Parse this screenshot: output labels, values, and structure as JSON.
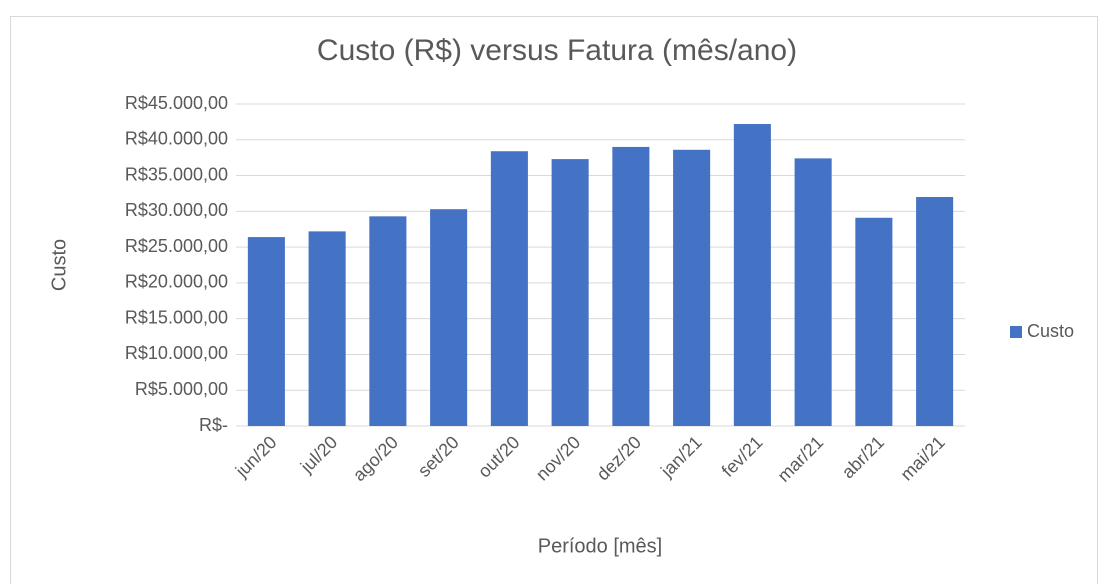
{
  "chart_data": {
    "type": "bar",
    "title": "Custo (R$) versus Fatura (mês/ano)",
    "x_label": "Período [mês]",
    "y_label": "Custo",
    "categories": [
      "jun/20",
      "jul/20",
      "ago/20",
      "set/20",
      "out/20",
      "nov/20",
      "dez/20",
      "jan/21",
      "fev/21",
      "mar/21",
      "abr/21",
      "mai/21"
    ],
    "series": [
      {
        "name": "Custo",
        "color": "#4472c4",
        "values": [
          26400,
          27200,
          29300,
          30300,
          38400,
          37300,
          39000,
          38600,
          42200,
          37400,
          29100,
          32000
        ]
      }
    ],
    "ylim": [
      0,
      45000
    ],
    "yticks": [
      {
        "value": 0,
        "label": "R$-"
      },
      {
        "value": 5000,
        "label": "R$5.000,00"
      },
      {
        "value": 10000,
        "label": "R$10.000,00"
      },
      {
        "value": 15000,
        "label": "R$15.000,00"
      },
      {
        "value": 20000,
        "label": "R$20.000,00"
      },
      {
        "value": 25000,
        "label": "R$25.000,00"
      },
      {
        "value": 30000,
        "label": "R$30.000,00"
      },
      {
        "value": 35000,
        "label": "R$35.000,00"
      },
      {
        "value": 40000,
        "label": "R$40.000,00"
      },
      {
        "value": 45000,
        "label": "R$45.000,00"
      }
    ],
    "grid": true,
    "legend": "right"
  }
}
